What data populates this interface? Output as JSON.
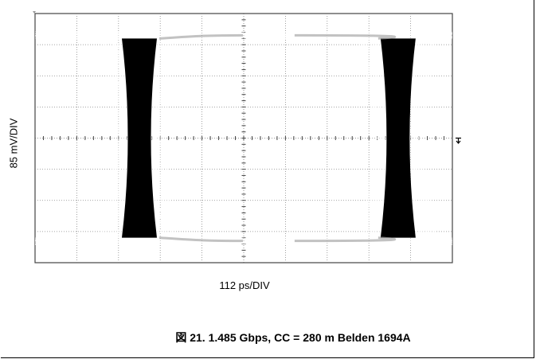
{
  "chart_data": {
    "type": "eye-diagram",
    "xlabel": "112 ps/DIV",
    "ylabel": "85 mV/DIV",
    "x_divisions": 10,
    "y_divisions": 8,
    "time_per_div_ps": 112,
    "volts_per_div_mV": 85,
    "levels_div": {
      "high": 3.3,
      "low": -3.3
    },
    "crossings_div": [
      -2.5,
      3.7
    ],
    "grid": true,
    "trace_color": "#111111"
  },
  "caption": "図 21. 1.485 Gbps, CC = 280 m Belden 1694A"
}
